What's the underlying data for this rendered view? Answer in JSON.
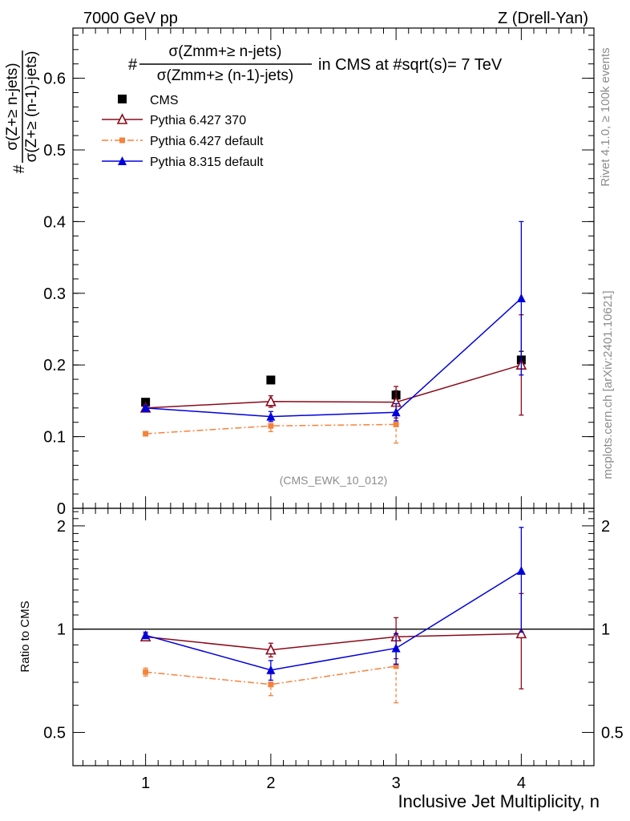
{
  "header": {
    "left": "7000 GeV pp",
    "right": "Z (Drell-Yan)"
  },
  "side_labels": {
    "rivet": "Rivet 4.1.0, ≥ 100k events",
    "mcplots": "mcplots.cern.ch [arXiv:2401.10621]"
  },
  "legend": {
    "title_hash": "#",
    "title_num": "σ(Zmm+≥ n-jets)",
    "title_den": "σ(Zmm+≥ (n-1)-jets)",
    "title_rest": "in CMS at #sqrt(s)= 7 TeV"
  },
  "watermark": "(CMS_EWK_10_012)",
  "colors": {
    "cms": "#000000",
    "pythia6_370": "#8b0a1a",
    "pythia6_default": "#f5823c",
    "pythia8": "#0000dd"
  },
  "chart_data": [
    {
      "type": "scatter",
      "panel": "main",
      "ylabel_hash": "#",
      "ylabel_num": "σ(Z+≥ n-jets)",
      "ylabel_den": "σ(Z+≥ (n-1)-jets)",
      "ylim": [
        0,
        0.67
      ],
      "yticks": [
        0,
        0.1,
        0.2,
        0.3,
        0.4,
        0.5,
        0.6
      ],
      "ytick_labels": [
        "0",
        "0.1",
        "0.2",
        "0.3",
        "0.4",
        "0.5",
        "0.6"
      ],
      "xlim": [
        0.42,
        4.58
      ],
      "x": [
        1,
        2,
        3,
        4
      ],
      "series": [
        {
          "name": "CMS",
          "key": "cms",
          "marker": "square",
          "line": "none",
          "values": [
            0.148,
            0.179,
            0.158,
            0.207
          ],
          "err": [
            0.004,
            0.004,
            0.006,
            0.012
          ]
        },
        {
          "name": "Pythia 6.427 370",
          "key": "pythia6_370",
          "marker": "open-triangle",
          "line": "solid",
          "values": [
            0.14,
            0.149,
            0.148,
            0.2
          ],
          "err": [
            0.004,
            0.008,
            0.022,
            0.07
          ]
        },
        {
          "name": "Pythia 6.427 default",
          "key": "pythia6_default",
          "marker": "small-square",
          "line": "dashdot",
          "values": [
            0.104,
            0.115,
            0.117,
            null
          ],
          "err": [
            0.003,
            0.008,
            0.026,
            null
          ]
        },
        {
          "name": "Pythia 8.315 default",
          "key": "pythia8",
          "marker": "triangle",
          "line": "solid",
          "values": [
            0.14,
            0.128,
            0.134,
            0.293
          ],
          "err": [
            0.003,
            0.007,
            0.012,
            0.107
          ]
        }
      ]
    },
    {
      "type": "scatter",
      "panel": "ratio",
      "ylabel": "Ratio to CMS",
      "ylim": [
        0.4,
        2.25
      ],
      "yticks": [
        0.5,
        1,
        2
      ],
      "ytick_labels": [
        "0.5",
        "1",
        "2"
      ],
      "xlabel": "Inclusive Jet Multiplicity, n",
      "xticks": [
        1,
        2,
        3,
        4
      ],
      "xtick_labels": [
        "1",
        "2",
        "3",
        "4"
      ],
      "reference": 1,
      "x": [
        1,
        2,
        3,
        4
      ],
      "series": [
        {
          "name": "Pythia 6.427 370",
          "key": "pythia6_370",
          "marker": "open-triangle",
          "line": "solid",
          "values": [
            0.95,
            0.87,
            0.95,
            0.97
          ],
          "err": [
            0.02,
            0.04,
            0.13,
            0.3
          ]
        },
        {
          "name": "Pythia 6.427 default",
          "key": "pythia6_default",
          "marker": "small-square",
          "line": "dashdot",
          "values": [
            0.75,
            0.69,
            0.78,
            null
          ],
          "err": [
            0.02,
            0.05,
            0.17,
            null
          ]
        },
        {
          "name": "Pythia 8.315 default",
          "key": "pythia8",
          "marker": "triangle",
          "line": "solid",
          "values": [
            0.96,
            0.76,
            0.88,
            1.48
          ],
          "err": [
            0.02,
            0.05,
            0.09,
            0.5
          ]
        }
      ]
    }
  ]
}
